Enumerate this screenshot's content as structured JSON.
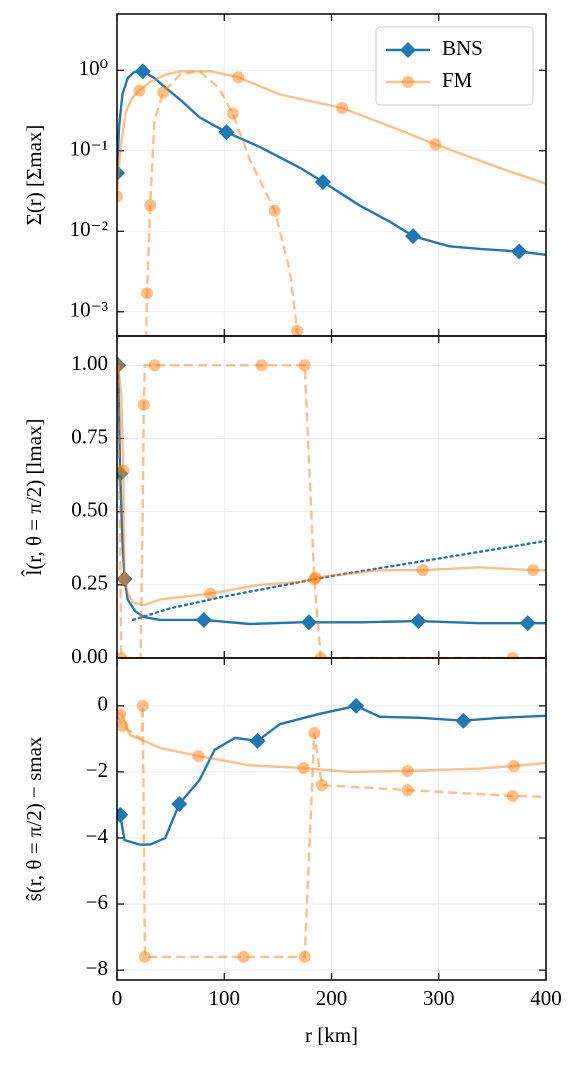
{
  "chart_data": [
    {
      "type": "line",
      "ylabel": "Σ(r)  [Σmax]",
      "log_y": true,
      "grid": true,
      "legend": "upper right",
      "xlim": [
        0,
        400
      ],
      "xticks": [
        0,
        100,
        200,
        300,
        400
      ],
      "ylim": [
        0.0005,
        5
      ],
      "yticks": [
        {
          "value": 0.001,
          "label": "10⁻³"
        },
        {
          "value": 0.01,
          "label": "10⁻²"
        },
        {
          "value": 0.1,
          "label": "10⁻¹"
        },
        {
          "value": 1,
          "label": "10⁰"
        }
      ],
      "series": [
        {
          "name": "BNS",
          "color": "#1f77b4",
          "opacity": 1,
          "style": "solid",
          "marker": "diamond",
          "x": [
            0,
            2,
            5,
            10,
            16,
            24,
            35,
            45,
            59,
            77,
            102,
            134,
            171,
            192,
            226,
            255,
            276,
            310,
            340,
            375,
            400
          ],
          "values": [
            0.053,
            0.2,
            0.5,
            0.8,
            0.95,
            0.97,
            0.8,
            0.61,
            0.43,
            0.26,
            0.17,
            0.11,
            0.061,
            0.041,
            0.021,
            0.013,
            0.0087,
            0.0065,
            0.006,
            0.0056,
            0.0051
          ],
          "marker_x": [
            0,
            24,
            102,
            192,
            276,
            375
          ],
          "marker_values": [
            0.053,
            0.97,
            0.17,
            0.041,
            0.0087,
            0.0056
          ]
        },
        {
          "name": "FM",
          "color": "#ff7f0e",
          "opacity": 0.5,
          "style": "solid",
          "marker": "circle",
          "x": [
            0,
            3,
            8,
            14,
            21,
            30,
            45,
            59,
            87,
            113,
            152,
            210,
            264,
            297,
            357,
            400
          ],
          "values": [
            0.027,
            0.1,
            0.3,
            0.45,
            0.56,
            0.7,
            0.88,
            0.97,
            0.97,
            0.82,
            0.5,
            0.34,
            0.18,
            0.12,
            0.061,
            0.039
          ],
          "marker_x": [
            0,
            21,
            113,
            210,
            297
          ],
          "marker_values": [
            0.027,
            0.56,
            0.82,
            0.34,
            0.12
          ]
        },
        {
          "color": "#ff7f0e",
          "opacity": 0.5,
          "style": "dashed",
          "marker": "circle",
          "x": [
            26.5,
            28,
            31,
            35,
            43,
            59,
            77,
            95,
            108,
            124,
            147,
            161,
            168,
            175
          ],
          "values": [
            0.0002,
            0.0017,
            0.021,
            0.24,
            0.53,
            0.89,
            0.97,
            0.6,
            0.29,
            0.077,
            0.018,
            0.0033,
            0.00058,
            0.0002
          ],
          "marker_x": [
            28,
            31,
            43,
            108,
            147,
            168
          ],
          "marker_values": [
            0.0017,
            0.021,
            0.53,
            0.29,
            0.018,
            0.00058
          ]
        }
      ]
    },
    {
      "type": "line",
      "ylabel": "l̂(r, θ = π/2)  [lmax]",
      "log_y": false,
      "grid": true,
      "xlim": [
        0,
        400
      ],
      "xticks": [
        0,
        100,
        200,
        300,
        400
      ],
      "ylim": [
        0,
        1.1
      ],
      "yticks": [
        {
          "value": 0,
          "label": "0.00"
        },
        0.25,
        {
          "value": 0.5,
          "label": "0.50"
        },
        0.75,
        {
          "value": 1,
          "label": "1.00"
        }
      ],
      "series": [
        {
          "color": "#1f77b4",
          "opacity": 1,
          "style": "solid",
          "marker": "diamond",
          "x": [
            0,
            1,
            3,
            5,
            7,
            10,
            17,
            25,
            40,
            81,
            124,
            171,
            179,
            227,
            281,
            338,
            383,
            400
          ],
          "values": [
            1.0,
            1.0,
            0.63,
            0.4,
            0.27,
            0.2,
            0.16,
            0.14,
            0.13,
            0.13,
            0.116,
            0.122,
            0.122,
            0.122,
            0.126,
            0.119,
            0.119,
            0.119
          ],
          "marker_x": [
            1,
            3,
            7,
            81,
            179,
            281,
            383
          ],
          "marker_values": [
            1.0,
            0.63,
            0.27,
            0.13,
            0.122,
            0.126,
            0.119
          ]
        },
        {
          "color": "#1f77b4",
          "opacity": 1,
          "style": "dotted",
          "x": [
            15,
            50,
            100,
            200,
            300,
            400
          ],
          "values": [
            0.13,
            0.17,
            0.21,
            0.28,
            0.34,
            0.4
          ]
        },
        {
          "color": "#ff7f0e",
          "opacity": 0.5,
          "style": "solid",
          "marker": "circle",
          "x": [
            1,
            4,
            6,
            7,
            10,
            15,
            25,
            40,
            87,
            133,
            171,
            185,
            245,
            285,
            338,
            388,
            400
          ],
          "values": [
            1.0,
            0.9,
            0.64,
            0.27,
            0.22,
            0.19,
            0.18,
            0.2,
            0.22,
            0.25,
            0.26,
            0.275,
            0.3,
            0.3,
            0.31,
            0.3,
            0.3
          ],
          "marker_x": [
            6,
            7,
            87,
            185,
            285,
            388
          ],
          "marker_values": [
            0.64,
            0.27,
            0.22,
            0.275,
            0.3,
            0.3
          ]
        },
        {
          "color": "#ff7f0e",
          "opacity": 0.5,
          "style": "dashed",
          "marker": "circle",
          "x": [
            1,
            4,
            22,
            24,
            25,
            26,
            175,
            184,
            190,
            400
          ],
          "values": [
            1.0,
            0,
            0,
            0.5,
            0.865,
            1.0,
            1.0,
            0.27,
            0,
            0
          ],
          "marker_x": [
            1,
            4,
            25,
            35,
            135,
            175,
            184,
            190,
            369
          ],
          "marker_values": [
            1.0,
            0,
            0.865,
            1.0,
            1.0,
            1.0,
            0.27,
            0,
            0
          ]
        }
      ]
    },
    {
      "type": "line",
      "ylabel": "ŝ(r, θ = π/2) − smax",
      "xlabel": "r  [km]",
      "log_y": false,
      "grid": true,
      "xlim": [
        0,
        400
      ],
      "xticks": [
        0,
        100,
        200,
        300,
        400
      ],
      "ylim": [
        -8.3,
        1.45
      ],
      "yticks": [
        {
          "value": -8,
          "label": "−8"
        },
        {
          "value": -6,
          "label": "−6"
        },
        {
          "value": -4,
          "label": "−4"
        },
        {
          "value": -2,
          "label": "−2"
        },
        0
      ],
      "series": [
        {
          "color": "#1f77b4",
          "opacity": 1,
          "style": "solid",
          "marker": "diamond",
          "x": [
            0,
            3,
            7,
            21,
            31,
            45,
            58,
            77,
            91,
            110,
            131,
            152,
            189,
            223,
            245,
            283,
            323,
            357,
            400
          ],
          "values": [
            -3.3,
            -3.3,
            -4.06,
            -4.2,
            -4.2,
            -4.0,
            -2.97,
            -2.24,
            -1.33,
            -0.97,
            -1.06,
            -0.55,
            -0.24,
            0.0,
            -0.33,
            -0.36,
            -0.45,
            -0.36,
            -0.3
          ],
          "marker_x": [
            3,
            58,
            131,
            223,
            323
          ],
          "marker_values": [
            -3.3,
            -2.97,
            -1.06,
            0.0,
            -0.45
          ]
        },
        {
          "color": "#ff7f0e",
          "opacity": 0.5,
          "style": "solid",
          "marker": "circle",
          "x": [
            0,
            5,
            12,
            40,
            76,
            124,
            174,
            217,
            271,
            338,
            370,
            400
          ],
          "values": [
            -0.18,
            -0.3,
            -0.88,
            -1.27,
            -1.52,
            -1.8,
            -1.88,
            -2.0,
            -1.97,
            -1.9,
            -1.82,
            -1.73
          ],
          "marker_x": [
            3,
            76,
            174,
            271,
            370
          ],
          "marker_values": [
            -0.25,
            -1.52,
            -1.88,
            -1.97,
            -1.82
          ]
        },
        {
          "color": "#ff7f0e",
          "opacity": 0.5,
          "style": "dashed",
          "marker": "circle",
          "x": [
            0,
            5,
            21,
            23,
            24,
            25,
            26,
            175,
            184,
            191,
            271,
            369,
            400
          ],
          "values": [
            -0.3,
            -0.6,
            -0.97,
            -1.0,
            0.0,
            -3.5,
            -7.6,
            -7.6,
            -0.82,
            -2.4,
            -2.55,
            -2.73,
            -2.76
          ],
          "marker_x": [
            5,
            24,
            26,
            118,
            175,
            184,
            191,
            271,
            369
          ],
          "marker_values": [
            -0.6,
            0.0,
            -7.6,
            -7.6,
            -7.6,
            -0.82,
            -2.4,
            -2.55,
            -2.73
          ]
        }
      ]
    }
  ]
}
